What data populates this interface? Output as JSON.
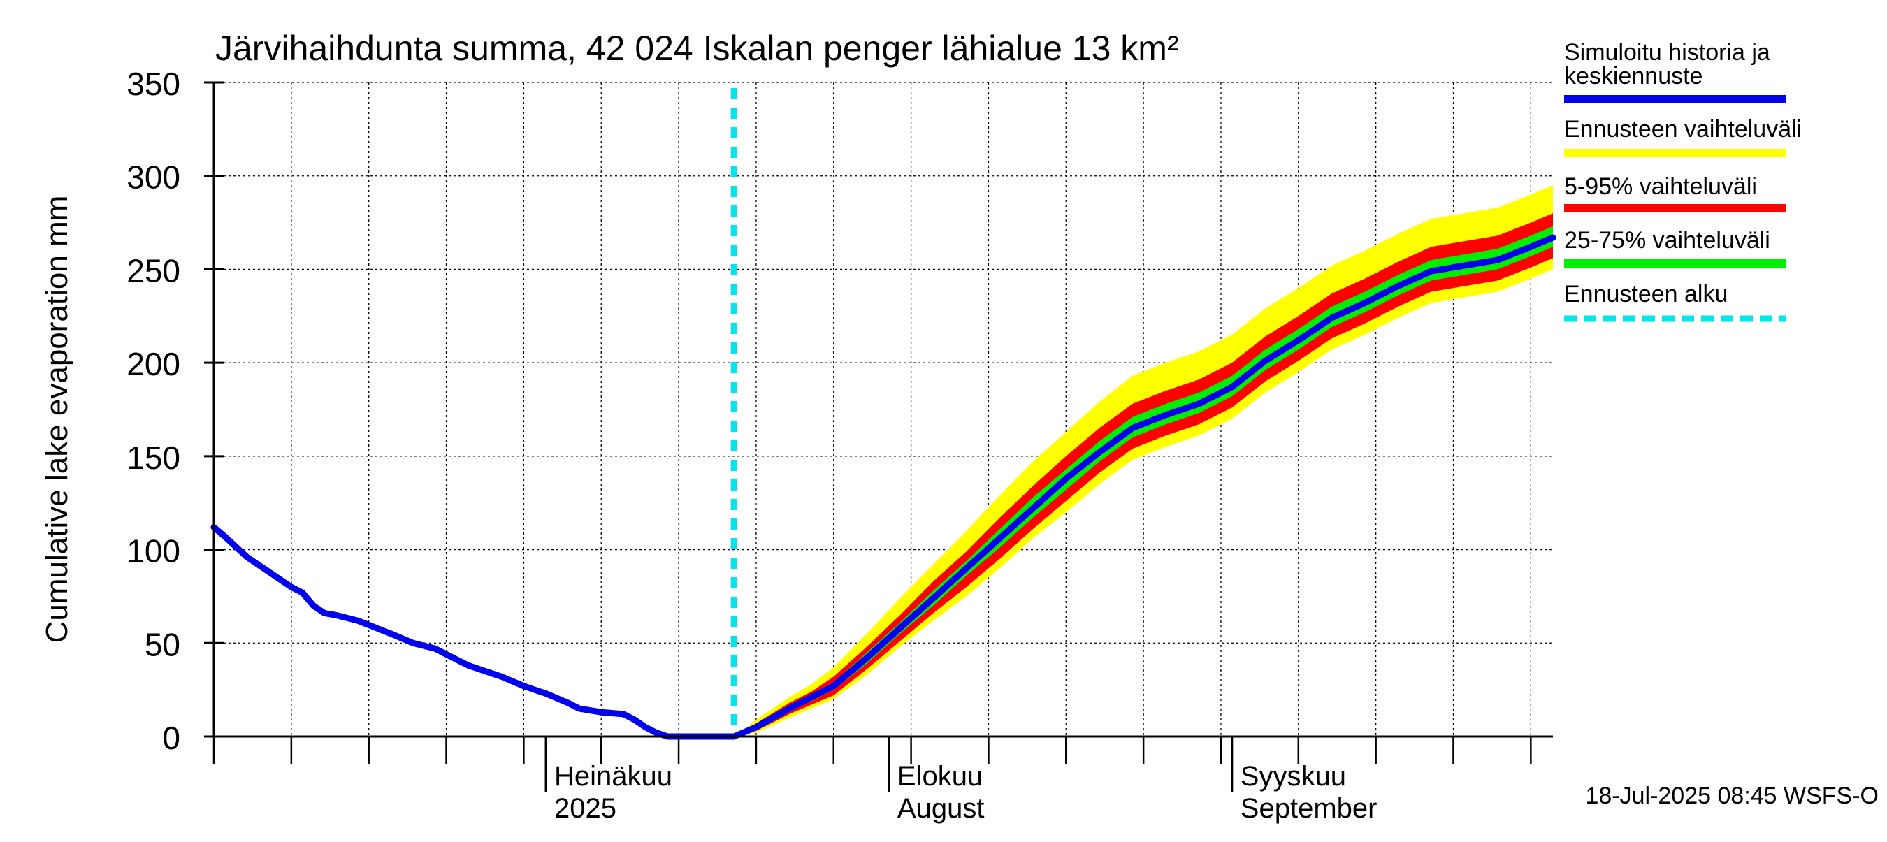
{
  "chart_data": {
    "type": "area",
    "title": "Järvihaihdunta summa, 42 024 Iskalan penger lähialue 13 km²",
    "ylabel": "Cumulative lake evaporation   mm",
    "xlabel": "",
    "ylim": [
      0,
      350
    ],
    "yticks": [
      "0",
      "50",
      "100",
      "150",
      "200",
      "250",
      "300",
      "350"
    ],
    "xlim": [
      "2025-06-01",
      "2025-09-30"
    ],
    "grid": true,
    "month_labels": [
      {
        "date": "2025-07-01",
        "line1": "Heinäkuu",
        "line2": "2025"
      },
      {
        "date": "2025-08-01",
        "line1": "Elokuu",
        "line2": "August"
      },
      {
        "date": "2025-09-01",
        "line1": "Syyskuu",
        "line2": "September"
      }
    ],
    "forecast_start": "2025-07-18",
    "legend_position": "right",
    "legend": [
      {
        "label": "Simuloitu historia ja keskiennuste",
        "color": "#0000ee",
        "style": "solid"
      },
      {
        "label": "Ennusteen vaihteluväli",
        "color": "#ffff00",
        "style": "solid"
      },
      {
        "label": "5-95% vaihteluväli",
        "color": "#ff0000",
        "style": "solid"
      },
      {
        "label": "25-75% vaihteluväli",
        "color": "#00ee00",
        "style": "solid"
      },
      {
        "label": "Ennusteen alku",
        "color": "#00e5ee",
        "style": "dashed"
      }
    ],
    "footer": "18-Jul-2025 08:45 WSFS-O",
    "history": {
      "x": [
        "2025-06-01",
        "2025-06-02",
        "2025-06-04",
        "2025-06-06",
        "2025-06-08",
        "2025-06-09",
        "2025-06-10",
        "2025-06-11",
        "2025-06-12",
        "2025-06-14",
        "2025-06-17",
        "2025-06-19",
        "2025-06-21",
        "2025-06-23",
        "2025-06-24",
        "2025-06-27",
        "2025-06-29",
        "2025-07-01",
        "2025-07-03",
        "2025-07-04",
        "2025-07-05",
        "2025-07-06",
        "2025-07-08",
        "2025-07-09",
        "2025-07-10",
        "2025-07-11",
        "2025-07-12",
        "2025-07-13",
        "2025-07-14",
        "2025-07-16",
        "2025-07-17",
        "2025-07-18"
      ],
      "y": [
        112,
        107,
        96,
        88,
        80,
        77,
        70,
        66,
        65,
        62,
        55,
        50,
        47,
        41,
        38,
        32,
        27,
        23,
        18,
        15,
        14,
        13,
        12,
        9,
        5,
        2,
        0,
        0,
        0,
        0,
        0,
        0
      ]
    },
    "forecast": {
      "x": [
        "2025-07-18",
        "2025-07-20",
        "2025-07-23",
        "2025-07-25",
        "2025-07-27",
        "2025-07-30",
        "2025-08-02",
        "2025-08-05",
        "2025-08-08",
        "2025-08-11",
        "2025-08-14",
        "2025-08-17",
        "2025-08-20",
        "2025-08-23",
        "2025-08-26",
        "2025-08-29",
        "2025-09-01",
        "2025-09-04",
        "2025-09-07",
        "2025-09-10",
        "2025-09-13",
        "2025-09-16",
        "2025-09-19",
        "2025-09-22",
        "2025-09-25",
        "2025-09-28",
        "2025-09-30"
      ],
      "min": [
        0,
        2,
        10,
        15,
        20,
        33,
        48,
        62,
        75,
        90,
        106,
        120,
        135,
        148,
        155,
        161,
        170,
        184,
        195,
        207,
        215,
        224,
        232,
        235,
        238,
        245,
        250
      ],
      "p05": [
        0,
        3,
        12,
        17,
        22,
        36,
        51,
        66,
        80,
        95,
        111,
        126,
        141,
        154,
        161,
        167,
        176,
        190,
        201,
        213,
        221,
        230,
        238,
        241,
        244,
        251,
        256
      ],
      "p25": [
        0,
        4,
        14,
        19,
        25,
        39,
        55,
        70,
        86,
        101,
        117,
        132,
        147,
        160,
        167,
        173,
        182,
        196,
        207,
        219,
        227,
        236,
        244,
        247,
        250,
        257,
        262
      ],
      "median": [
        0,
        5,
        15,
        21,
        27,
        42,
        58,
        74,
        90,
        106,
        122,
        138,
        152,
        165,
        172,
        178,
        187,
        201,
        212,
        224,
        232,
        241,
        249,
        252,
        255,
        262,
        267
      ],
      "p75": [
        0,
        6,
        16,
        22,
        29,
        45,
        61,
        78,
        94,
        111,
        128,
        143,
        158,
        171,
        178,
        184,
        193,
        207,
        218,
        230,
        238,
        247,
        255,
        258,
        261,
        268,
        273
      ],
      "p95": [
        0,
        7,
        18,
        24,
        32,
        48,
        65,
        83,
        99,
        117,
        134,
        150,
        165,
        178,
        185,
        191,
        200,
        214,
        225,
        237,
        245,
        254,
        262,
        265,
        268,
        275,
        280
      ],
      "max": [
        0,
        9,
        21,
        28,
        37,
        55,
        74,
        92,
        110,
        129,
        147,
        163,
        179,
        193,
        200,
        206,
        215,
        229,
        240,
        252,
        260,
        269,
        277,
        280,
        283,
        290,
        295
      ]
    }
  }
}
